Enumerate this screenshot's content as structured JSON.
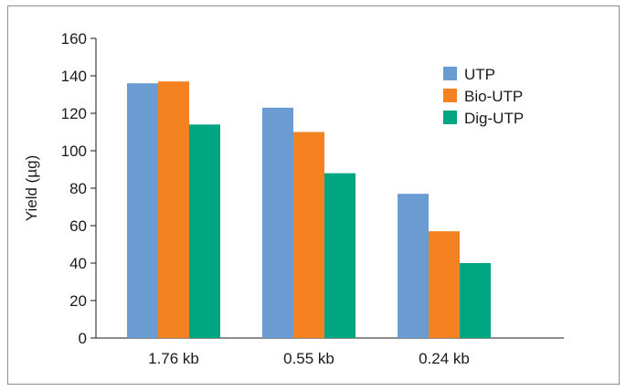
{
  "chart_data": {
    "type": "bar",
    "title": "",
    "xlabel": "",
    "ylabel": "Yield (µg)",
    "ylim": [
      0,
      160
    ],
    "yticks": [
      0,
      20,
      40,
      60,
      80,
      100,
      120,
      140,
      160
    ],
    "grid": false,
    "legend_position": "top-right",
    "categories": [
      "1.76 kb",
      "0.55 kb",
      "0.24 kb"
    ],
    "series": [
      {
        "name": "UTP",
        "color": "#6a9bd1",
        "values": [
          136,
          123,
          77
        ]
      },
      {
        "name": "Bio-UTP",
        "color": "#f58220",
        "values": [
          137,
          110,
          57
        ]
      },
      {
        "name": "Dig-UTP",
        "color": "#00a681",
        "values": [
          114,
          88,
          40
        ]
      }
    ]
  }
}
